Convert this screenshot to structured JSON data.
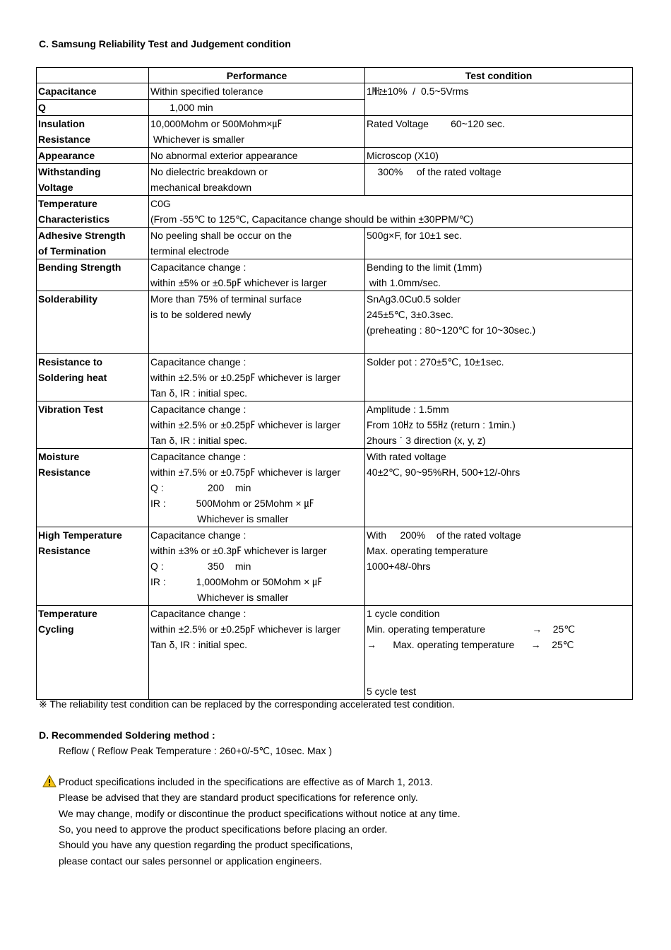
{
  "section_c_title": "C. Samsung Reliability Test and Judgement condition",
  "table": {
    "headers": [
      "",
      "Performance",
      "Test condition"
    ],
    "rows": [
      {
        "item": [
          "Capacitance"
        ],
        "performance": [
          "Within specified tolerance"
        ],
        "condition": [
          "1㎒±10%  /  0.5~5Vrms"
        ],
        "condition_rowspan": 2
      },
      {
        "item": [
          "Q"
        ],
        "performance": [
          "       1,000 min"
        ]
      },
      {
        "item": [
          "Insulation",
          "Resistance"
        ],
        "performance": [
          "10,000Mohm or 500Mohm×㎌",
          " Whichever is smaller"
        ],
        "condition": [
          "Rated Voltage        60~120 sec."
        ]
      },
      {
        "item": [
          "Appearance"
        ],
        "performance": [
          "No abnormal exterior appearance"
        ],
        "condition": [
          "Microscop (X10)"
        ]
      },
      {
        "item": [
          "Withstanding",
          "Voltage"
        ],
        "performance": [
          "No dielectric breakdown or",
          "mechanical breakdown"
        ],
        "condition": [
          "    300%     of the rated voltage"
        ]
      },
      {
        "item": [
          "Temperature",
          "Characteristics"
        ],
        "performance": [
          "C0G",
          "(From -55℃ to 125℃, Capacitance change should be within ±30PPM/℃)"
        ],
        "performance_colspan": 2
      },
      {
        "item": [
          "Adhesive Strength",
          "of Termination"
        ],
        "performance": [
          "No peeling shall be occur on the",
          "terminal electrode"
        ],
        "condition": [
          "500g×F, for 10±1 sec."
        ]
      },
      {
        "item": [
          "Bending Strength"
        ],
        "performance": [
          "Capacitance change :",
          "within ±5% or ±0.5㎊ whichever is larger"
        ],
        "condition": [
          "Bending to the limit (1mm)",
          " with 1.0mm/sec."
        ]
      },
      {
        "item": [
          "Solderability"
        ],
        "performance": [
          "More than 75% of terminal surface",
          "is to be soldered newly"
        ],
        "condition": [
          "SnAg3.0Cu0.5 solder",
          "245±5℃, 3±0.3sec.",
          "(preheating : 80~120℃ for 10~30sec.)"
        ],
        "lines": 4
      },
      {
        "item": [
          "Resistance to",
          "Soldering heat"
        ],
        "performance": [
          "Capacitance change :",
          "within ±2.5% or ±0.25㎊ whichever is larger",
          "Tan δ, IR : initial spec."
        ],
        "condition": [
          "Solder pot : 270±5℃, 10±1sec."
        ],
        "lines": 3
      },
      {
        "item": [
          "Vibration Test"
        ],
        "performance": [
          "Capacitance change :",
          "within ±2.5% or ±0.25㎊ whichever is larger",
          "Tan δ, IR : initial spec."
        ],
        "condition": [
          "Amplitude : 1.5mm",
          "From 10㎐ to 55㎐ (return : 1min.)",
          "2hours ´ 3 direction (x, y, z)"
        ],
        "lines": 3
      },
      {
        "item": [
          "Moisture",
          "Resistance"
        ],
        "performance": [
          "Capacitance change :",
          "within ±7.5% or ±0.75㎊ whichever is larger",
          "Q :                200    min",
          "IR :           500Mohm or 25Mohm × ㎌",
          "                 Whichever is smaller"
        ],
        "condition": [
          "With rated voltage",
          "40±2℃, 90~95%RH, 500+12/-0hrs"
        ],
        "lines": 5
      },
      {
        "item": [
          "High Temperature",
          "Resistance"
        ],
        "performance": [
          "Capacitance change :",
          "within ±3% or ±0.3㎊ whichever is larger",
          "Q :                350    min",
          "IR :           1,000Mohm or 50Mohm × ㎌",
          "                 Whichever is smaller"
        ],
        "condition": [
          "With     200%    of the rated voltage",
          "Max. operating temperature",
          "1000+48/-0hrs"
        ],
        "lines": 5
      },
      {
        "item": [
          "Temperature",
          "Cycling"
        ],
        "performance": [
          "Capacitance change :",
          "within ±2.5% or ±0.25㎊ whichever is larger",
          "Tan δ, IR : initial spec."
        ],
        "condition": [
          "1 cycle condition",
          "Min. operating temperature                 →    25℃",
          "→      Max. operating temperature      →    25℃",
          "",
          "",
          "5 cycle test"
        ],
        "lines": 6
      }
    ]
  },
  "footnote": "※ The reliability test condition can be replaced by the corresponding accelerated test condition.",
  "section_d_title": "D. Recommended Soldering method :",
  "section_d_text": "Reflow ( Reflow Peak Temperature : 260+0/-5℃, 10sec. Max )",
  "notice_icon": "warning-triangle-icon",
  "notice_lines": [
    "Product specifications included in the specifications are effective as of March 1, 2013.",
    "Please be advised that they are standard product specifications for reference only.",
    "We may change, modify or discontinue the product specifications without notice at any time.",
    "So, you need to approve the product specifications before placing an order.",
    "Should you have any question regarding the product specifications,",
    "please contact our sales personnel or application engineers."
  ]
}
